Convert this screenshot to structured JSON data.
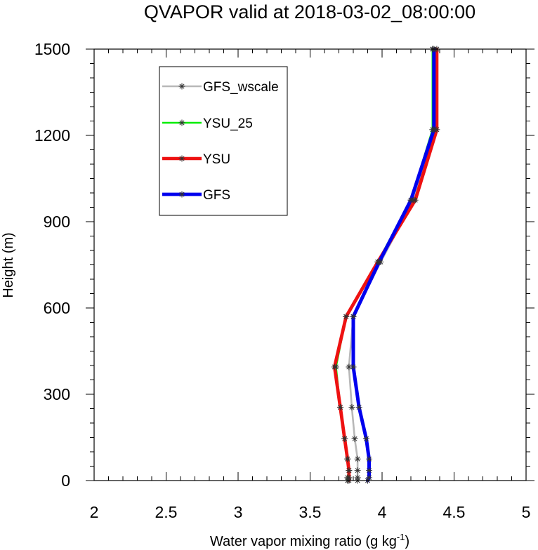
{
  "chart_data": {
    "type": "line",
    "title": "QVAPOR valid at 2018-03-02_08:00:00",
    "xlabel_main": "Water vapor mixing ratio (g kg",
    "xlabel_sup": "-1",
    "xlabel_close": ")",
    "ylabel": "Height (m)",
    "xlim": [
      2,
      5
    ],
    "ylim": [
      0,
      1500
    ],
    "x_ticks": [
      2,
      2.5,
      3,
      3.5,
      4,
      4.5,
      5
    ],
    "x_tick_labels": [
      "2",
      "2.5",
      "3",
      "3.5",
      "4",
      "4.5",
      "5"
    ],
    "y_ticks": [
      0,
      300,
      600,
      900,
      1200,
      1500
    ],
    "y_tick_labels": [
      "0",
      "300",
      "600",
      "900",
      "1200",
      "1500"
    ],
    "grid": false,
    "legend_position": "top-left",
    "series": [
      {
        "name": "GFS_wscale",
        "color": "#b8b8b8",
        "heights": [
          0,
          10,
          35,
          75,
          145,
          255,
          395,
          570,
          760,
          975,
          1220,
          1500
        ],
        "values": [
          3.83,
          3.83,
          3.83,
          3.83,
          3.81,
          3.79,
          3.77,
          3.8,
          3.99,
          4.22,
          4.36,
          4.35
        ]
      },
      {
        "name": "YSU_25",
        "color": "#00ee00",
        "heights": [
          0,
          10,
          35,
          75,
          145,
          255,
          395,
          570,
          760,
          975,
          1220,
          1500
        ],
        "values": [
          3.76,
          3.76,
          3.77,
          3.76,
          3.74,
          3.71,
          3.68,
          3.75,
          3.97,
          4.2,
          4.35,
          4.35
        ]
      },
      {
        "name": "YSU",
        "color": "#ee1111",
        "heights": [
          0,
          10,
          35,
          75,
          145,
          255,
          395,
          570,
          760,
          975,
          1220,
          1500
        ],
        "values": [
          3.77,
          3.77,
          3.77,
          3.76,
          3.74,
          3.71,
          3.67,
          3.75,
          3.97,
          4.23,
          4.38,
          4.38
        ]
      },
      {
        "name": "GFS",
        "color": "#0000ee",
        "heights": [
          0,
          10,
          35,
          75,
          145,
          255,
          395,
          510,
          570,
          760,
          975,
          1220,
          1500
        ],
        "values": [
          3.9,
          3.91,
          3.91,
          3.91,
          3.89,
          3.84,
          3.8,
          3.8,
          3.8,
          3.98,
          4.2,
          4.36,
          4.36
        ]
      }
    ],
    "legend_widths": [
      2.6,
      2.6,
      4.5,
      4.8
    ],
    "series_widths": [
      2.6,
      2.6,
      4.8,
      5
    ]
  }
}
